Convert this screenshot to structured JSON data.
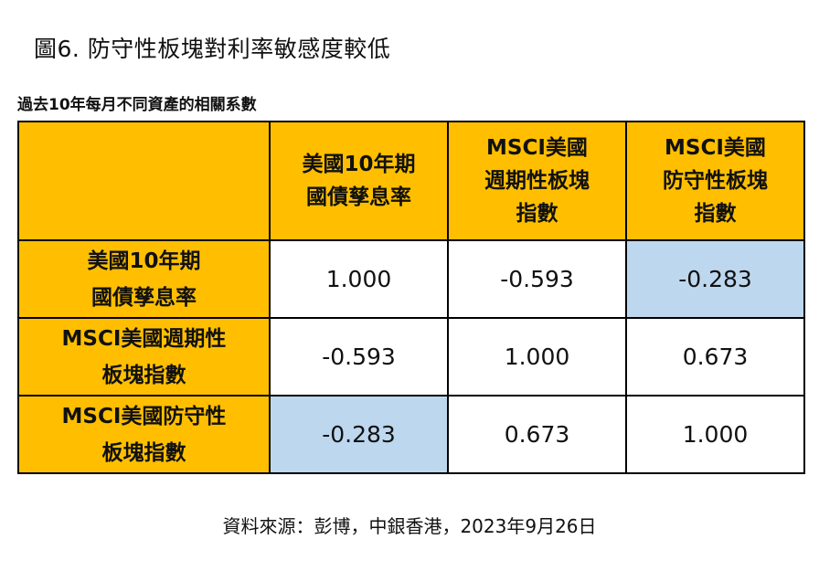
{
  "figure_title": "圖6. 防守性板塊對利率敏感度較低",
  "subtitle": "過去10年每月不同資產的相關系數",
  "source": "資料來源：彭博，中銀香港，2023年9月26日",
  "colors": {
    "header_bg": "#FFBF00",
    "highlight_bg": "#BDD7EE",
    "cell_bg": "#FFFFFF",
    "border": "#000000"
  },
  "chart_data": {
    "type": "table",
    "title": "過去10年每月不同資產的相關系數",
    "columns": [
      "美國10年期\n國債孳息率",
      "MSCI美國\n週期性板塊\n指數",
      "MSCI美國\n防守性板塊\n指數"
    ],
    "rows": [
      {
        "label": "美國10年期\n國債孳息率",
        "cells": [
          "1.000",
          "-0.593",
          "-0.283"
        ],
        "highlight": [
          false,
          false,
          true
        ]
      },
      {
        "label": "MSCI美國週期性\n板塊指數",
        "cells": [
          "-0.593",
          "1.000",
          "0.673"
        ],
        "highlight": [
          false,
          false,
          false
        ]
      },
      {
        "label": "MSCI美國防守性\n板塊指數",
        "cells": [
          "-0.283",
          "0.673",
          "1.000"
        ],
        "highlight": [
          true,
          false,
          false
        ]
      }
    ]
  }
}
